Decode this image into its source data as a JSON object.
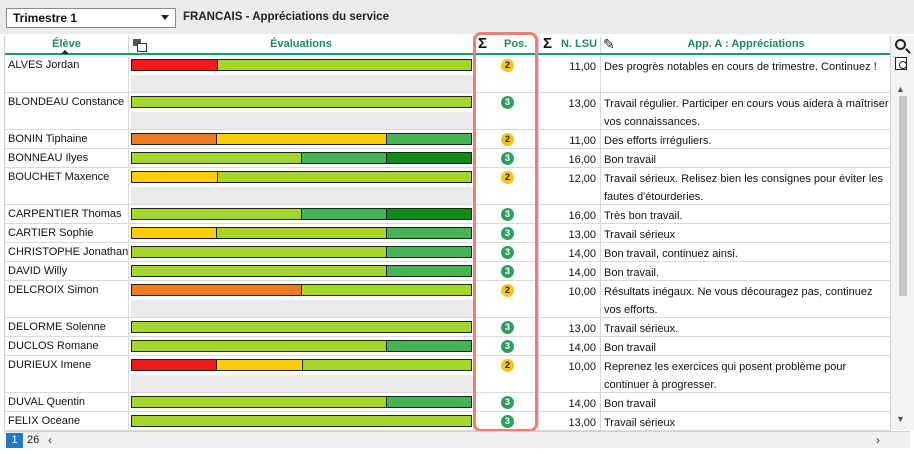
{
  "period": {
    "selected": "Trimestre 1"
  },
  "service_title": "FRANCAIS - Appréciations du service",
  "headers": {
    "eleve": "Élève",
    "evaluations": "Évaluations",
    "pos": "Pos.",
    "nlsu": "N. LSU",
    "appreciation": "App. A : Appréciations"
  },
  "colors": {
    "red": "#ee1c1c",
    "orange": "#f07a20",
    "yellow": "#fecc0a",
    "lightgreen": "#a6d62c",
    "green": "#44b455",
    "darkgreen": "#128a1a",
    "accent": "#1e9a6e",
    "highlight": "#ee7f74"
  },
  "students": [
    {
      "name": "ALVES Jordan",
      "segments": [
        {
          "color": "red",
          "share": 0.25
        },
        {
          "color": "lightgreen",
          "share": 0.75
        }
      ],
      "pos": "2",
      "lsu": "11,00",
      "appreciation": "Des progrès notables en cours de trimestre. Continuez !",
      "tall": true
    },
    {
      "name": "BLONDEAU Constance",
      "segments": [
        {
          "color": "lightgreen",
          "share": 1.0
        }
      ],
      "pos": "3",
      "lsu": "13,00",
      "appreciation": "Travail régulier. Participer en cours vous aidera à maîtriser vos connaissances.",
      "tall": true
    },
    {
      "name": "BONIN Tiphaine",
      "segments": [
        {
          "color": "orange",
          "share": 0.25
        },
        {
          "color": "yellow",
          "share": 0.5
        },
        {
          "color": "green",
          "share": 0.25
        }
      ],
      "pos": "2",
      "lsu": "11,00",
      "appreciation": "Des efforts irréguliers.",
      "tall": false
    },
    {
      "name": "BONNEAU Ilyes",
      "segments": [
        {
          "color": "lightgreen",
          "share": 0.5
        },
        {
          "color": "green",
          "share": 0.25
        },
        {
          "color": "darkgreen",
          "share": 0.25
        }
      ],
      "pos": "3",
      "lsu": "16,00",
      "appreciation": "Bon travail",
      "tall": false
    },
    {
      "name": "BOUCHET Maxence",
      "segments": [
        {
          "color": "yellow",
          "share": 0.25
        },
        {
          "color": "lightgreen",
          "share": 0.75
        }
      ],
      "pos": "2",
      "lsu": "12,00",
      "appreciation": "Travail sérieux. Relisez bien les consignes pour éviter les fautes d'étourderies.",
      "tall": true
    },
    {
      "name": "CARPENTIER Thomas",
      "segments": [
        {
          "color": "lightgreen",
          "share": 0.5
        },
        {
          "color": "green",
          "share": 0.25
        },
        {
          "color": "darkgreen",
          "share": 0.25
        }
      ],
      "pos": "3",
      "lsu": "16,00",
      "appreciation": "Très bon travail.",
      "tall": false
    },
    {
      "name": "CARTIER Sophie",
      "segments": [
        {
          "color": "yellow",
          "share": 0.25
        },
        {
          "color": "lightgreen",
          "share": 0.5
        },
        {
          "color": "green",
          "share": 0.25
        }
      ],
      "pos": "3",
      "lsu": "13,00",
      "appreciation": "Travail sérieux",
      "tall": false
    },
    {
      "name": "CHRISTOPHE Jonathan",
      "segments": [
        {
          "color": "lightgreen",
          "share": 0.75
        },
        {
          "color": "green",
          "share": 0.25
        }
      ],
      "pos": "3",
      "lsu": "14,00",
      "appreciation": "Bon travail, continuez ainsi.",
      "tall": false
    },
    {
      "name": "DAVID Willy",
      "segments": [
        {
          "color": "lightgreen",
          "share": 0.75
        },
        {
          "color": "green",
          "share": 0.25
        }
      ],
      "pos": "3",
      "lsu": "14,00",
      "appreciation": "Bon travail.",
      "tall": false
    },
    {
      "name": "DELCROIX Simon",
      "segments": [
        {
          "color": "orange",
          "share": 0.5
        },
        {
          "color": "lightgreen",
          "share": 0.5
        }
      ],
      "pos": "2",
      "lsu": "10,00",
      "appreciation": "Résultats inégaux. Ne vous découragez pas, continuez vos efforts.",
      "tall": true
    },
    {
      "name": "DELORME Solenne",
      "segments": [
        {
          "color": "lightgreen",
          "share": 1.0
        }
      ],
      "pos": "3",
      "lsu": "13,00",
      "appreciation": "Travail sérieux.",
      "tall": false
    },
    {
      "name": "DUCLOS Romane",
      "segments": [
        {
          "color": "lightgreen",
          "share": 0.75
        },
        {
          "color": "green",
          "share": 0.25
        }
      ],
      "pos": "3",
      "lsu": "14,00",
      "appreciation": "Bon travail",
      "tall": false
    },
    {
      "name": "DURIEUX Imene",
      "segments": [
        {
          "color": "red",
          "share": 0.25
        },
        {
          "color": "yellow",
          "share": 0.25
        },
        {
          "color": "lightgreen",
          "share": 0.5
        }
      ],
      "pos": "2",
      "lsu": "10,00",
      "appreciation": "Reprenez les exercices qui posent problème pour continuer à progresser.",
      "tall": true
    },
    {
      "name": "DUVAL Quentin",
      "segments": [
        {
          "color": "lightgreen",
          "share": 0.75
        },
        {
          "color": "green",
          "share": 0.25
        }
      ],
      "pos": "3",
      "lsu": "14,00",
      "appreciation": "Bon travail",
      "tall": false
    },
    {
      "name": "FELIX Oceane",
      "segments": [
        {
          "color": "lightgreen",
          "share": 1.0
        }
      ],
      "pos": "3",
      "lsu": "13,00",
      "appreciation": "Travail sérieux",
      "tall": false
    }
  ],
  "pagination": {
    "current": "1",
    "total": "26"
  }
}
